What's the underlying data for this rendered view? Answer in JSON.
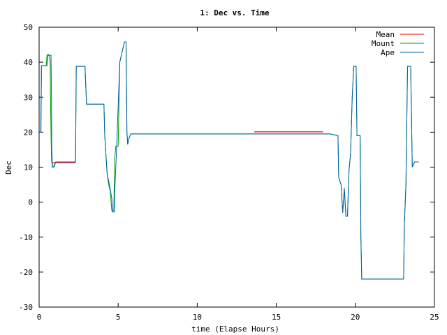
{
  "chart_data": {
    "type": "line",
    "title": "1: Dec vs. Time",
    "xlabel": "time (Elapse Hours)",
    "ylabel": "Dec",
    "xlim": [
      0,
      25
    ],
    "ylim": [
      -30,
      50
    ],
    "xticks": [
      0,
      5,
      10,
      15,
      20,
      25
    ],
    "yticks": [
      -30,
      -20,
      -10,
      0,
      10,
      20,
      30,
      40,
      50
    ],
    "grid": false,
    "legend": "top-right",
    "series": [
      {
        "name": "Mean",
        "color": "#ff0000",
        "points": [
          [
            0.85,
            11.3
          ],
          [
            2.3,
            11.3
          ],
          [
            13.6,
            20.1
          ],
          [
            17.95,
            20.1
          ]
        ]
      },
      {
        "name": "Mount",
        "color": "#00a000",
        "points": [
          [
            0.0,
            20.0
          ],
          [
            0.12,
            20.0
          ],
          [
            0.15,
            39.0
          ],
          [
            0.45,
            39.0
          ],
          [
            0.5,
            42.0
          ],
          [
            0.6,
            42.2
          ],
          [
            0.7,
            40.5
          ],
          [
            0.72,
            30.0
          ],
          [
            0.75,
            20.0
          ],
          [
            0.78,
            12.0
          ],
          [
            0.85,
            10.0
          ],
          [
            0.95,
            10.5
          ],
          [
            1.05,
            11.5
          ],
          [
            2.3,
            11.5
          ],
          [
            2.35,
            38.8
          ],
          [
            2.9,
            38.8
          ],
          [
            3.0,
            28.0
          ],
          [
            4.1,
            28.0
          ],
          [
            4.15,
            19.0
          ],
          [
            4.3,
            8.0
          ],
          [
            4.4,
            5.0
          ],
          [
            4.5,
            3.0
          ],
          [
            4.6,
            -2.5
          ],
          [
            4.72,
            -2.5
          ],
          [
            4.78,
            12.0
          ],
          [
            4.85,
            16.0
          ],
          [
            5.0,
            16.0
          ],
          [
            5.1,
            40.0
          ],
          [
            5.3,
            44.0
          ],
          [
            5.4,
            45.8
          ],
          [
            5.5,
            45.8
          ],
          [
            5.55,
            20.0
          ],
          [
            5.6,
            16.5
          ],
          [
            5.7,
            18.5
          ],
          [
            5.8,
            19.5
          ],
          [
            18.4,
            19.5
          ],
          [
            18.9,
            19.0
          ],
          [
            18.95,
            7.0
          ],
          [
            19.1,
            5.0
          ],
          [
            19.2,
            -3.0
          ],
          [
            19.3,
            4.0
          ],
          [
            19.4,
            -4.0
          ],
          [
            19.5,
            -4.0
          ],
          [
            19.6,
            9.0
          ],
          [
            19.7,
            14.0
          ],
          [
            19.8,
            30.0
          ],
          [
            19.9,
            38.8
          ],
          [
            20.05,
            38.8
          ],
          [
            20.1,
            19.0
          ],
          [
            20.3,
            19.0
          ],
          [
            20.35,
            -10.0
          ],
          [
            20.4,
            -22.0
          ],
          [
            23.05,
            -22.0
          ],
          [
            23.1,
            -6.0
          ],
          [
            23.2,
            5.0
          ],
          [
            23.3,
            38.8
          ],
          [
            23.5,
            38.8
          ],
          [
            23.6,
            10.0
          ],
          [
            23.75,
            11.5
          ],
          [
            24.0,
            11.5
          ]
        ]
      },
      {
        "name": "Ape",
        "color": "#0060ad",
        "points": [
          [
            0.0,
            20.0
          ],
          [
            0.1,
            20.0
          ],
          [
            0.15,
            39.0
          ],
          [
            0.5,
            39.0
          ],
          [
            0.55,
            42.0
          ],
          [
            0.75,
            42.0
          ],
          [
            0.78,
            30.0
          ],
          [
            0.8,
            15.0
          ],
          [
            0.85,
            10.0
          ],
          [
            0.95,
            10.0
          ],
          [
            1.05,
            11.5
          ],
          [
            2.3,
            11.5
          ],
          [
            2.35,
            38.8
          ],
          [
            2.9,
            38.8
          ],
          [
            3.0,
            28.0
          ],
          [
            4.1,
            28.0
          ],
          [
            4.15,
            19.0
          ],
          [
            4.3,
            8.0
          ],
          [
            4.45,
            5.0
          ],
          [
            4.6,
            1.0
          ],
          [
            4.65,
            -2.8
          ],
          [
            4.75,
            -2.8
          ],
          [
            4.8,
            5.0
          ],
          [
            4.9,
            15.0
          ],
          [
            5.1,
            40.0
          ],
          [
            5.3,
            44.0
          ],
          [
            5.4,
            45.8
          ],
          [
            5.5,
            45.8
          ],
          [
            5.55,
            20.0
          ],
          [
            5.6,
            16.5
          ],
          [
            5.7,
            18.5
          ],
          [
            5.8,
            19.5
          ],
          [
            18.4,
            19.5
          ],
          [
            18.9,
            19.0
          ],
          [
            18.95,
            7.0
          ],
          [
            19.1,
            5.0
          ],
          [
            19.2,
            -3.0
          ],
          [
            19.3,
            4.0
          ],
          [
            19.4,
            -4.0
          ],
          [
            19.5,
            -4.0
          ],
          [
            19.6,
            9.0
          ],
          [
            19.7,
            14.0
          ],
          [
            19.8,
            30.0
          ],
          [
            19.9,
            38.8
          ],
          [
            20.05,
            38.8
          ],
          [
            20.1,
            19.0
          ],
          [
            20.3,
            19.0
          ],
          [
            20.35,
            -10.0
          ],
          [
            20.4,
            -22.0
          ],
          [
            23.05,
            -22.0
          ],
          [
            23.1,
            -6.0
          ],
          [
            23.2,
            5.0
          ],
          [
            23.3,
            38.8
          ],
          [
            23.5,
            38.8
          ],
          [
            23.6,
            10.0
          ],
          [
            23.75,
            11.5
          ],
          [
            24.0,
            11.5
          ]
        ]
      }
    ]
  }
}
